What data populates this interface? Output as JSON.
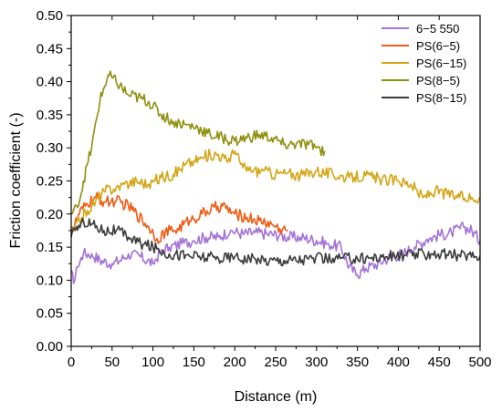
{
  "chart_data": {
    "type": "line",
    "title": "",
    "xlabel": "Distance (m)",
    "ylabel": "Friction coefficient (-)",
    "xlim": [
      0,
      500
    ],
    "ylim": [
      0,
      0.5
    ],
    "x_ticks": [
      "0",
      "50",
      "100",
      "150",
      "200",
      "250",
      "300",
      "350",
      "400",
      "450",
      "500"
    ],
    "y_ticks": [
      "0.00",
      "0.05",
      "0.10",
      "0.15",
      "0.20",
      "0.25",
      "0.30",
      "0.35",
      "0.40",
      "0.45",
      "0.50"
    ],
    "grid": false,
    "legend_position": "top-right",
    "series": [
      {
        "name": "6−5 550",
        "color": "#a472d8",
        "x": [
          0,
          3,
          8,
          15,
          25,
          35,
          50,
          60,
          70,
          85,
          100,
          110,
          120,
          135,
          150,
          165,
          180,
          195,
          210,
          225,
          240,
          255,
          265,
          280,
          300,
          315,
          330,
          340,
          350,
          360,
          375,
          390,
          405,
          420,
          435,
          450,
          465,
          480,
          490,
          500
        ],
        "y": [
          0.115,
          0.095,
          0.12,
          0.14,
          0.14,
          0.13,
          0.125,
          0.13,
          0.14,
          0.135,
          0.125,
          0.145,
          0.15,
          0.155,
          0.16,
          0.165,
          0.165,
          0.175,
          0.17,
          0.172,
          0.17,
          0.168,
          0.165,
          0.165,
          0.16,
          0.155,
          0.15,
          0.12,
          0.108,
          0.118,
          0.125,
          0.135,
          0.14,
          0.15,
          0.162,
          0.168,
          0.172,
          0.18,
          0.175,
          0.16
        ]
      },
      {
        "name": "PS(6−5)",
        "color": "#f05a14",
        "x": [
          0,
          10,
          20,
          30,
          40,
          55,
          70,
          80,
          95,
          105,
          115,
          130,
          145,
          160,
          175,
          185,
          200,
          215,
          230,
          245,
          255,
          265
        ],
        "y": [
          0.17,
          0.2,
          0.215,
          0.225,
          0.218,
          0.22,
          0.212,
          0.2,
          0.18,
          0.163,
          0.172,
          0.178,
          0.19,
          0.2,
          0.21,
          0.212,
          0.2,
          0.195,
          0.19,
          0.185,
          0.178,
          0.175
        ]
      },
      {
        "name": "PS(6−15)",
        "color": "#d4a516",
        "x": [
          0,
          10,
          20,
          30,
          40,
          55,
          65,
          80,
          95,
          110,
          125,
          140,
          150,
          160,
          170,
          180,
          190,
          200,
          210,
          220,
          235,
          250,
          265,
          280,
          300,
          320,
          340,
          360,
          380,
          400,
          415,
          430,
          445,
          460,
          475,
          490,
          500
        ],
        "y": [
          0.17,
          0.19,
          0.205,
          0.22,
          0.235,
          0.24,
          0.245,
          0.25,
          0.245,
          0.255,
          0.26,
          0.275,
          0.28,
          0.285,
          0.29,
          0.29,
          0.28,
          0.295,
          0.27,
          0.265,
          0.265,
          0.26,
          0.262,
          0.258,
          0.265,
          0.26,
          0.255,
          0.258,
          0.252,
          0.25,
          0.245,
          0.225,
          0.235,
          0.23,
          0.225,
          0.225,
          0.225
        ]
      },
      {
        "name": "PS(8−5)",
        "color": "#8f8f10",
        "x": [
          0,
          8,
          15,
          25,
          35,
          45,
          55,
          70,
          85,
          95,
          110,
          125,
          140,
          155,
          170,
          185,
          200,
          215,
          230,
          245,
          260,
          275,
          290,
          300,
          310
        ],
        "y": [
          0.2,
          0.21,
          0.25,
          0.3,
          0.37,
          0.41,
          0.4,
          0.38,
          0.375,
          0.37,
          0.35,
          0.34,
          0.335,
          0.33,
          0.32,
          0.315,
          0.31,
          0.315,
          0.32,
          0.315,
          0.305,
          0.305,
          0.305,
          0.3,
          0.295
        ]
      },
      {
        "name": "PS(8−15)",
        "color": "#3c3c3c",
        "x": [
          0,
          5,
          15,
          25,
          40,
          55,
          70,
          85,
          100,
          120,
          140,
          160,
          180,
          200,
          230,
          260,
          290,
          320,
          350,
          380,
          410,
          440,
          470,
          500
        ],
        "y": [
          0.165,
          0.175,
          0.19,
          0.185,
          0.175,
          0.175,
          0.165,
          0.155,
          0.15,
          0.14,
          0.138,
          0.135,
          0.133,
          0.135,
          0.13,
          0.13,
          0.132,
          0.133,
          0.133,
          0.135,
          0.138,
          0.14,
          0.138,
          0.137
        ]
      }
    ]
  }
}
